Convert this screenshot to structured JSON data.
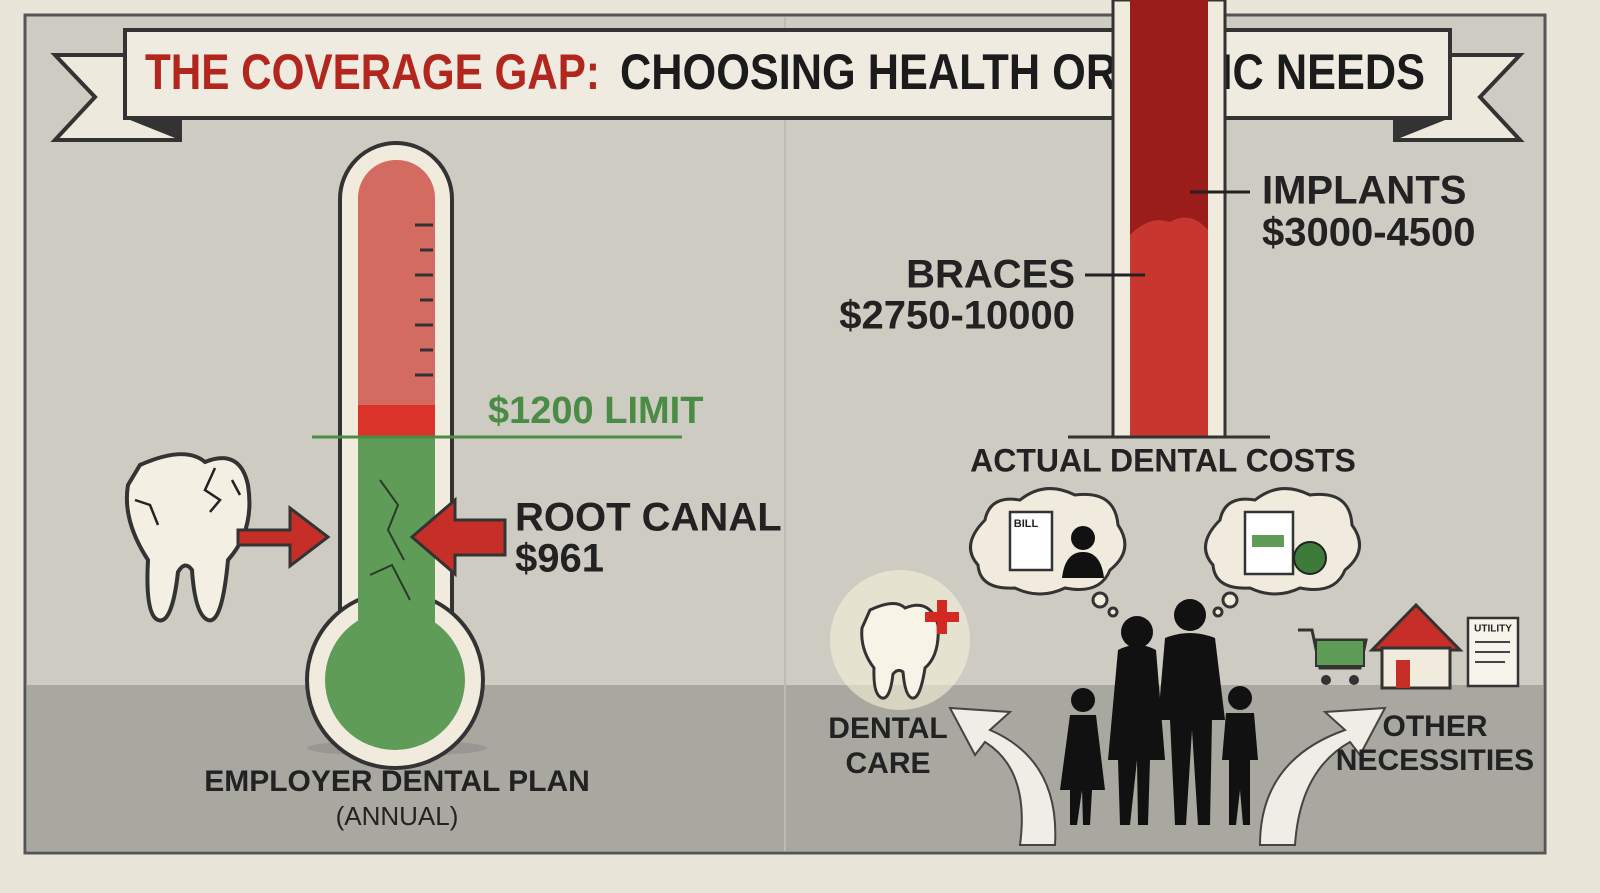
{
  "header": {
    "title_highlight": "THE COVERAGE GAP:",
    "title": "CHOOSING HEALTH OR BASIC NEEDS"
  },
  "left_panel": {
    "limit_label": "$1200 LIMIT",
    "procedure": {
      "name": "ROOT CANAL",
      "cost": "$961"
    },
    "caption": "EMPLOYER DENTAL PLAN",
    "caption_note": "(ANNUAL)"
  },
  "right_panel": {
    "costs": [
      {
        "name": "BRACES",
        "range": "$2750-10000"
      },
      {
        "name": "IMPLANTS",
        "range": "$3000-4500"
      }
    ],
    "caption": "ACTUAL DENTAL COSTS",
    "bill_label": "BILL",
    "utility_label": "UTILITY",
    "choices": [
      {
        "lines": [
          "DENTAL",
          "CARE"
        ]
      },
      {
        "lines": [
          "OTHER",
          "NECESSITIES"
        ]
      }
    ]
  }
}
